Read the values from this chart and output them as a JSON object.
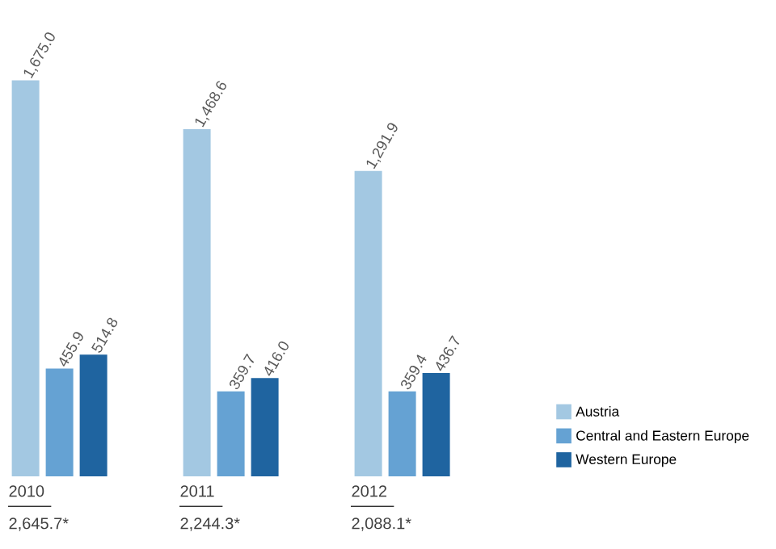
{
  "chart_data": {
    "type": "bar",
    "categories": [
      "2010",
      "2011",
      "2012"
    ],
    "series": [
      {
        "name": "Austria",
        "color": "#a3c8e2",
        "values": [
          1675.0,
          1468.6,
          1291.9
        ],
        "value_labels": [
          "1,675.0",
          "1,468.6",
          "1,291.9"
        ]
      },
      {
        "name": "Central and Eastern Europe",
        "color": "#65a2d3",
        "values": [
          455.9,
          359.7,
          359.4
        ],
        "value_labels": [
          "455.9",
          "359.7",
          "359.4"
        ]
      },
      {
        "name": "Western Europe",
        "color": "#1f64a0",
        "values": [
          514.8,
          416.0,
          436.7
        ],
        "value_labels": [
          "514.8",
          "416.0",
          "436.7"
        ]
      }
    ],
    "totals": [
      "2,645.7*",
      "2,244.3*",
      "2,088.1*"
    ],
    "legend": "bottom right"
  }
}
